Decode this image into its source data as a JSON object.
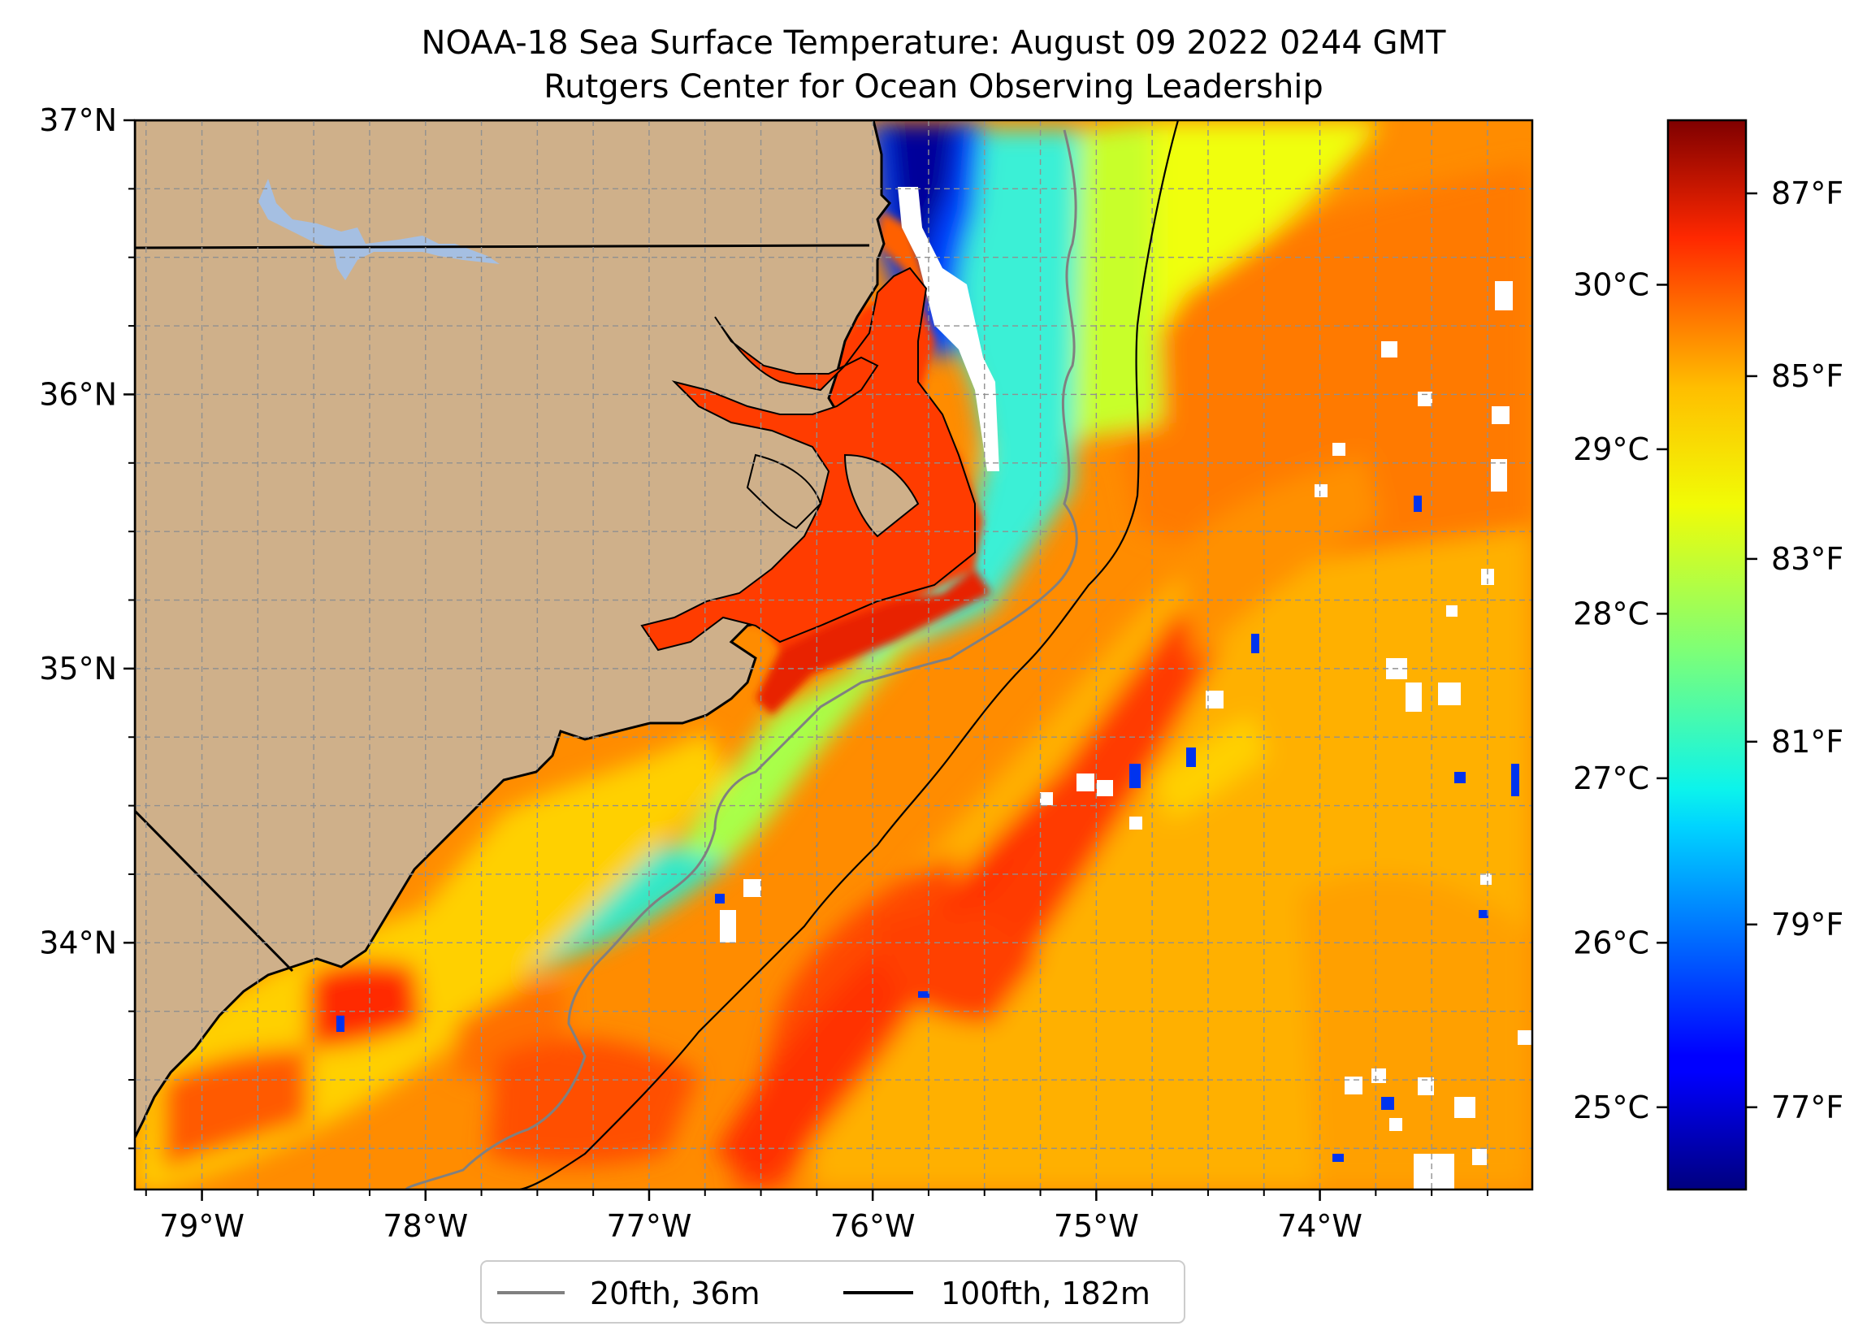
{
  "title_line1": "NOAA-18 Sea Surface Temperature: August 09 2022 0244 GMT",
  "title_line2": "Rutgers Center for Ocean Observing Leadership",
  "map": {
    "lon_min": -79.3,
    "lon_max": -73.05,
    "lat_min": 33.1,
    "lat_max": 37.0,
    "gridlines": "dashed",
    "land_color": "#cfb08a",
    "lake_color": "#a5bfe2",
    "lon_ticks": [
      {
        "value": -79,
        "label": "79°W"
      },
      {
        "value": -78,
        "label": "78°W"
      },
      {
        "value": -77,
        "label": "77°W"
      },
      {
        "value": -76,
        "label": "76°W"
      },
      {
        "value": -75,
        "label": "75°W"
      },
      {
        "value": -74,
        "label": "74°W"
      }
    ],
    "lat_ticks": [
      {
        "value": 37,
        "label": "37°N"
      },
      {
        "value": 36,
        "label": "36°N"
      },
      {
        "value": 35,
        "label": "35°N"
      },
      {
        "value": 34,
        "label": "34°N"
      }
    ]
  },
  "colorbar": {
    "colormap": "jet",
    "range_celsius": [
      24.5,
      31.0
    ],
    "celsius_ticks": [
      {
        "value": 25,
        "label": "25°C"
      },
      {
        "value": 26,
        "label": "26°C"
      },
      {
        "value": 27,
        "label": "27°C"
      },
      {
        "value": 28,
        "label": "28°C"
      },
      {
        "value": 29,
        "label": "29°C"
      },
      {
        "value": 30,
        "label": "30°C"
      }
    ],
    "fahrenheit_ticks": [
      {
        "value": 77,
        "label": "77°F"
      },
      {
        "value": 79,
        "label": "79°F"
      },
      {
        "value": 81,
        "label": "81°F"
      },
      {
        "value": 83,
        "label": "83°F"
      },
      {
        "value": 85,
        "label": "85°F"
      },
      {
        "value": 87,
        "label": "87°F"
      }
    ]
  },
  "legend": {
    "placement": "below plot",
    "items": [
      {
        "label": "20fth, 36m",
        "color": "#808080"
      },
      {
        "label": "100fth, 182m",
        "color": "#000000"
      }
    ]
  }
}
